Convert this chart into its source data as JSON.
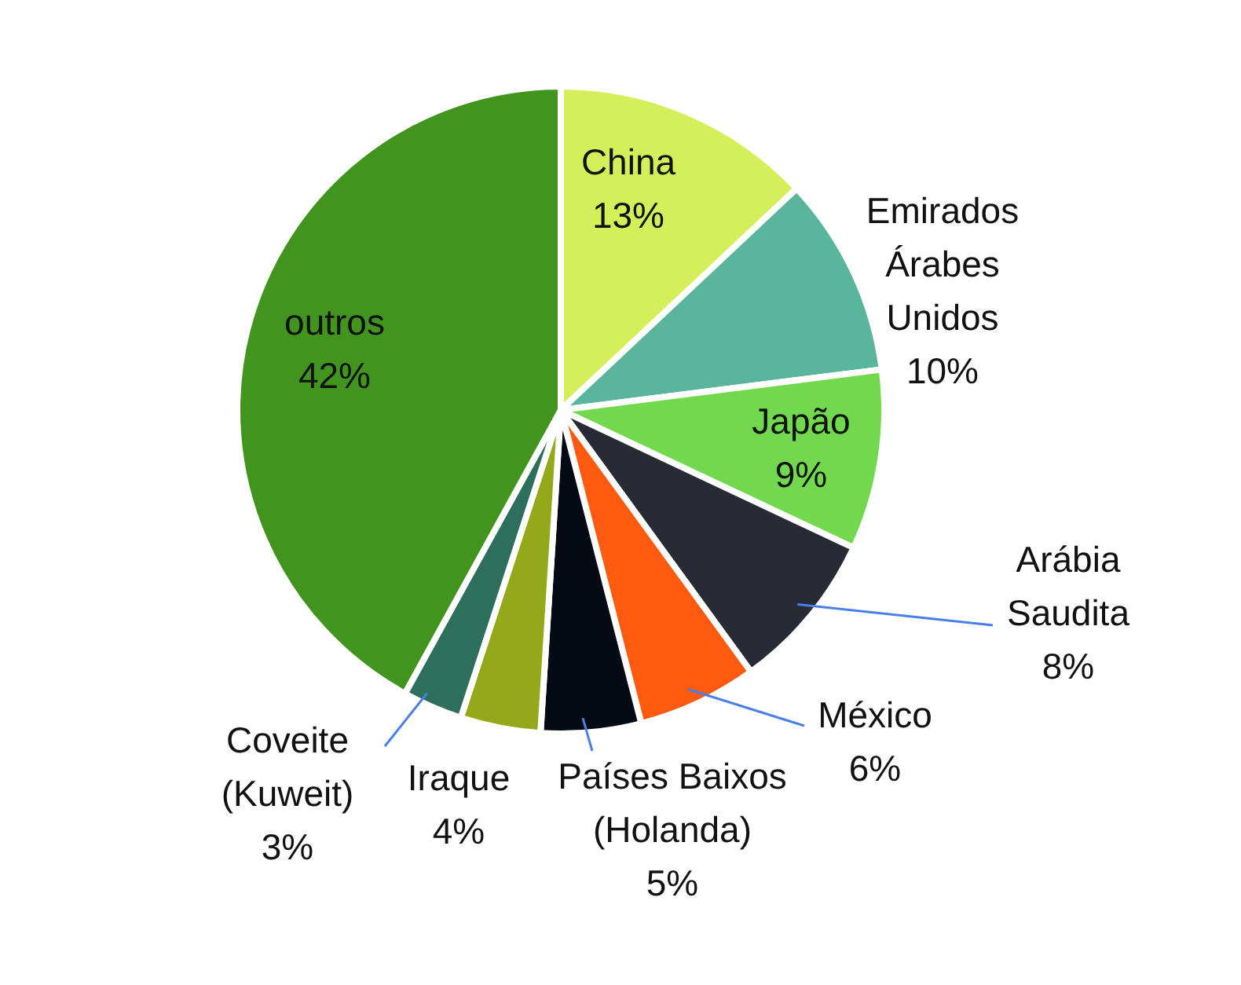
{
  "chart_data": {
    "type": "pie",
    "categories": [
      "China",
      "Emirados Árabes Unidos",
      "Japão",
      "Arábia Saudita",
      "México",
      "Países Baixos (Holanda)",
      "Iraque",
      "Coveite (Kuweit)",
      "outros"
    ],
    "values": [
      13,
      10,
      9,
      8,
      6,
      5,
      4,
      3,
      42
    ],
    "colors": [
      "#d4ef5a",
      "#5ab59d",
      "#72d94e",
      "#282b35",
      "#ff5a0f",
      "#050a14",
      "#93a91a",
      "#2e6e5c",
      "#41951f"
    ],
    "value_labels": [
      "13%",
      "10%",
      "9%",
      "8%",
      "6%",
      "5%",
      "4%",
      "3%",
      "42%"
    ],
    "legend": false
  }
}
